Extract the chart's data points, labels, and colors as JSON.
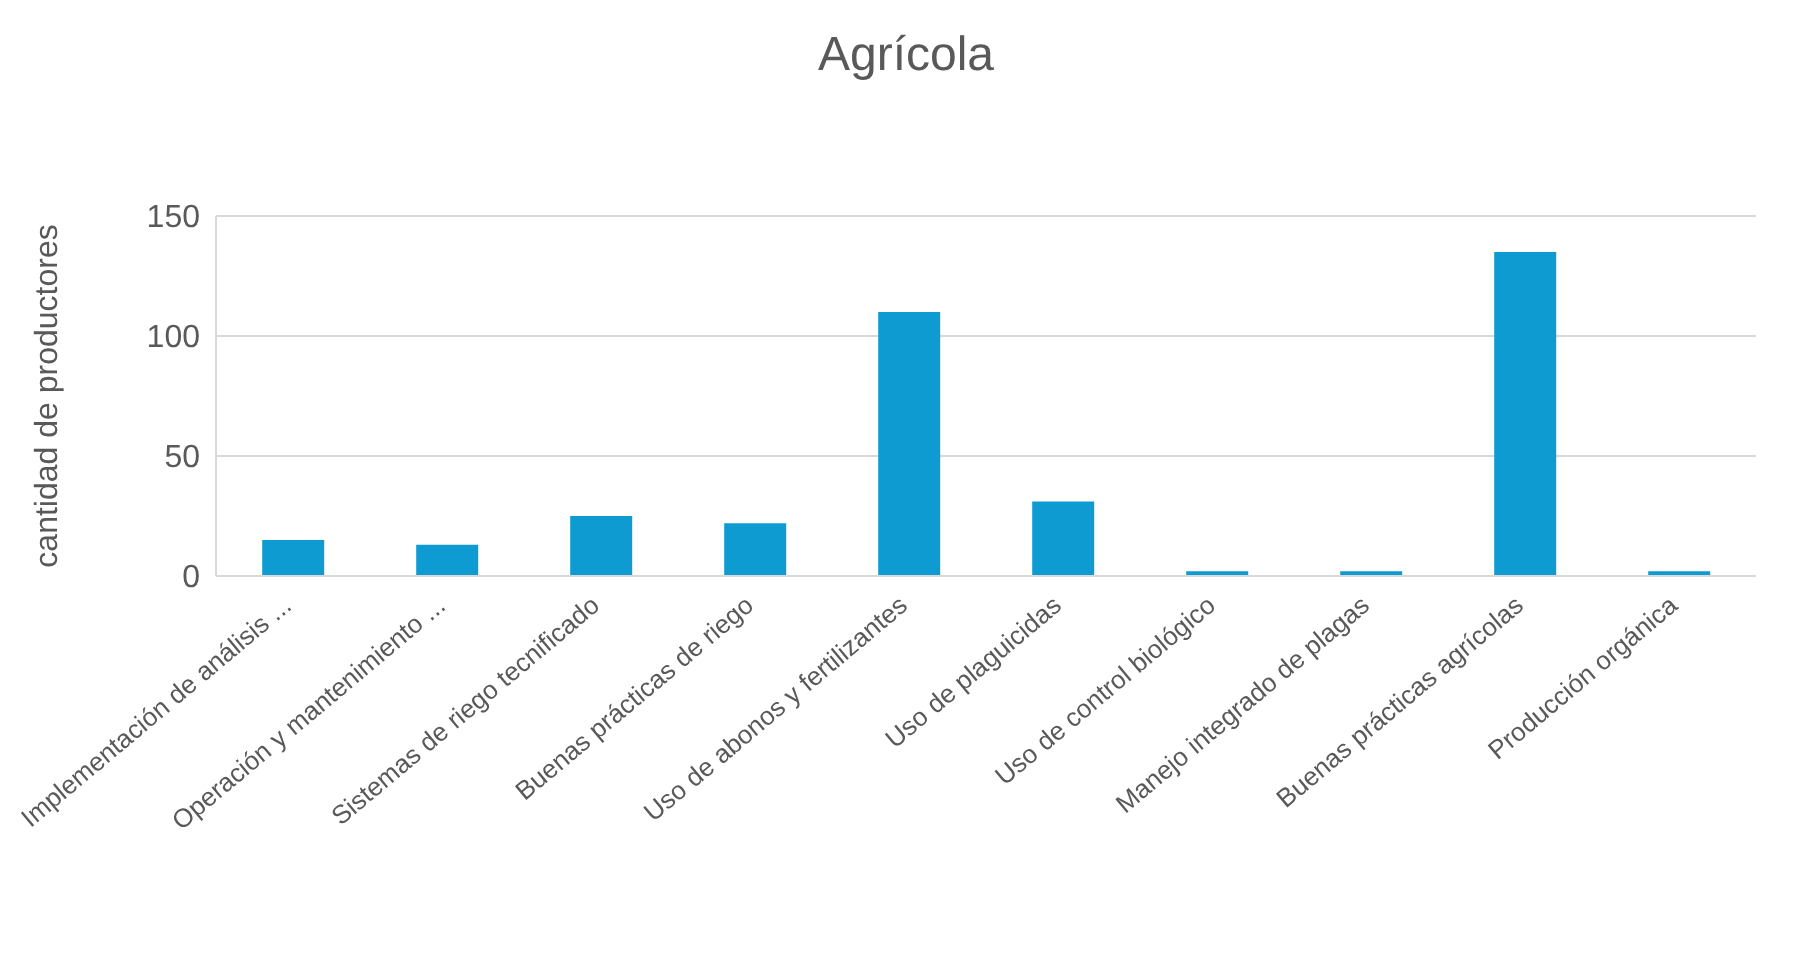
{
  "chart_data": {
    "type": "bar",
    "title": "Agrícola",
    "ylabel": "cantidad de productores",
    "categories": [
      "Implementación de análisis ...",
      "Operación y mantenimiento ...",
      "Sistemas de riego tecnificado",
      "Buenas prácticas de riego",
      "Uso de abonos y fertilizantes",
      "Uso de plaguicidas",
      "Uso de control biológico",
      "Manejo integrado de plagas",
      "Buenas prácticas agrícolas",
      "Producción orgánica"
    ],
    "values": [
      15,
      13,
      25,
      22,
      110,
      31,
      2,
      2,
      135,
      2
    ],
    "color": "#0e9bd2",
    "ylim": [
      0,
      150
    ],
    "yticks": [
      0,
      50,
      100,
      150
    ],
    "grid": "y"
  }
}
